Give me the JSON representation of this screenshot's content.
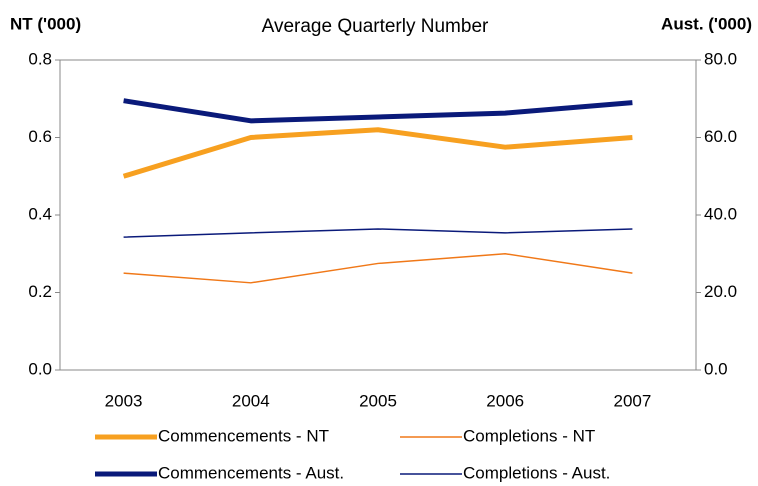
{
  "chart_data": {
    "type": "line",
    "title": "Average Quarterly Number",
    "y_label": "NT ('000)",
    "y2_label": "Aust. ('000)",
    "categories": [
      "2003",
      "2004",
      "2005",
      "2006",
      "2007"
    ],
    "series": [
      {
        "name": "Commencements - NT",
        "color": "#f7a020",
        "line_width": 5,
        "values": [
          0.5,
          0.6,
          0.62,
          0.575,
          0.6
        ]
      },
      {
        "name": "Completions - NT",
        "color": "#f07818",
        "line_width": 1.5,
        "values": [
          0.25,
          0.225,
          0.275,
          0.3,
          0.25
        ]
      },
      {
        "name": "Commencements - Aust.",
        "color": "#0a1a7a",
        "line_width": 5,
        "axis": "y2",
        "values": [
          69.5,
          64.3,
          65.3,
          66.3,
          69
        ]
      },
      {
        "name": "Completions - Aust.",
        "color": "#0a1a7a",
        "line_width": 1.5,
        "axis": "y2",
        "values": [
          34.3,
          35.4,
          36.4,
          35.4,
          36.4
        ]
      }
    ],
    "ylim": [
      0,
      0.8
    ],
    "yticks": [
      {
        "value": 0,
        "label": "0.0"
      },
      0.2,
      0.4,
      0.6,
      0.8
    ],
    "y2lim": [
      0,
      80
    ],
    "y2ticks": [
      {
        "value": 0,
        "label": "0.0"
      },
      {
        "value": 20,
        "label": "20.0"
      },
      {
        "value": 40,
        "label": "40.0"
      },
      {
        "value": 60,
        "label": "60.0"
      },
      {
        "value": 80,
        "label": "80.0"
      }
    ],
    "grid": false
  }
}
